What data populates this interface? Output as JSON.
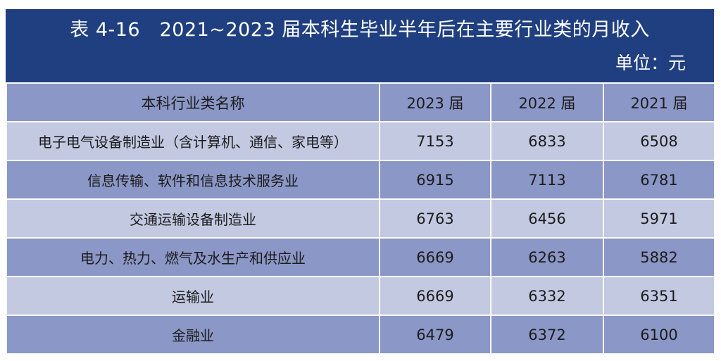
{
  "title": "表 4-16　2021~2023 届本科生毕业半年后在主要行业类的月收入",
  "unit": "单位：元",
  "colors": {
    "title_band": "#1f3f80",
    "row_dark": "#8b97c6",
    "row_light": "#c4c9e2"
  },
  "table": {
    "headers": [
      "本科行业类名称",
      "2023 届",
      "2022 届",
      "2021 届"
    ],
    "rows": [
      {
        "name": "电子电气设备制造业（含计算机、通信、家电等）",
        "v2023": "7153",
        "v2022": "6833",
        "v2021": "6508"
      },
      {
        "name": "信息传输、软件和信息技术服务业",
        "v2023": "6915",
        "v2022": "7113",
        "v2021": "6781"
      },
      {
        "name": "交通运输设备制造业",
        "v2023": "6763",
        "v2022": "6456",
        "v2021": "5971"
      },
      {
        "name": "电力、热力、燃气及水生产和供应业",
        "v2023": "6669",
        "v2022": "6263",
        "v2021": "5882"
      },
      {
        "name": "运输业",
        "v2023": "6669",
        "v2022": "6332",
        "v2021": "6351"
      },
      {
        "name": "金融业",
        "v2023": "6479",
        "v2022": "6372",
        "v2021": "6100"
      }
    ]
  }
}
